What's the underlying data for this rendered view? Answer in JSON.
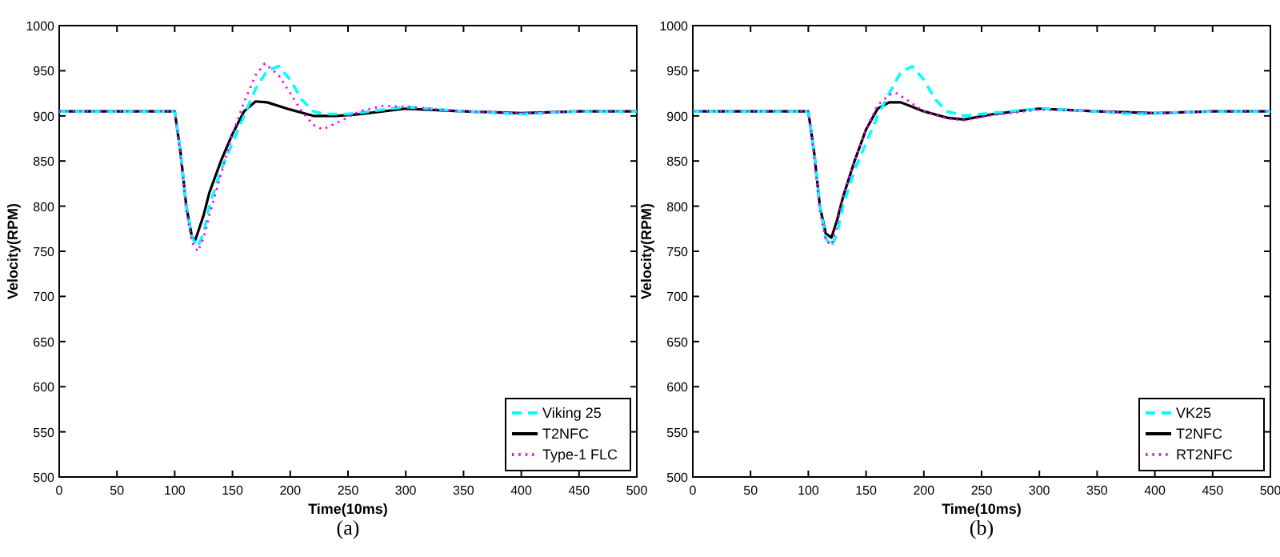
{
  "chart_data": [
    {
      "type": "line",
      "xlabel": "Time(10ms)",
      "ylabel": "Velocity(RPM)",
      "annotations": [
        "(a)"
      ],
      "xlim": [
        0,
        500
      ],
      "ylim": [
        500,
        1000
      ],
      "xticks": [
        0,
        50,
        100,
        150,
        200,
        250,
        300,
        350,
        400,
        450,
        500
      ],
      "yticks": [
        500,
        550,
        600,
        650,
        700,
        750,
        800,
        850,
        900,
        950,
        1000
      ],
      "legend": "bottom right",
      "grid": false,
      "series": [
        {
          "name": "Viking 25",
          "color": "#00ffff",
          "line_style": "dashed",
          "x": [
            0,
            100,
            105,
            110,
            115,
            120,
            125,
            130,
            140,
            150,
            160,
            170,
            180,
            190,
            200,
            210,
            220,
            230,
            250,
            300,
            350,
            400,
            450,
            500
          ],
          "values": [
            905,
            905,
            860,
            800,
            765,
            755,
            770,
            800,
            840,
            870,
            900,
            930,
            950,
            955,
            940,
            918,
            905,
            902,
            902,
            910,
            905,
            902,
            905,
            905
          ]
        },
        {
          "name": "T2NFC",
          "color": "#000000",
          "line_style": "solid",
          "x": [
            0,
            100,
            105,
            110,
            115,
            118,
            125,
            130,
            140,
            150,
            160,
            170,
            180,
            200,
            220,
            240,
            260,
            300,
            350,
            400,
            450,
            500
          ],
          "values": [
            905,
            905,
            860,
            800,
            765,
            763,
            790,
            815,
            850,
            880,
            905,
            916,
            915,
            907,
            900,
            900,
            902,
            908,
            905,
            903,
            905,
            905
          ]
        },
        {
          "name": "Type-1 FLC",
          "color": "#ff00ff",
          "line_style": "dotted",
          "x": [
            0,
            100,
            105,
            110,
            115,
            120,
            125,
            130,
            140,
            150,
            160,
            170,
            178,
            190,
            200,
            210,
            220,
            228,
            240,
            260,
            280,
            300,
            350,
            400,
            450,
            500
          ],
          "values": [
            905,
            905,
            855,
            795,
            760,
            750,
            765,
            790,
            835,
            880,
            915,
            945,
            958,
            945,
            925,
            905,
            890,
            885,
            892,
            905,
            911,
            910,
            905,
            903,
            905,
            905
          ]
        }
      ]
    },
    {
      "type": "line",
      "xlabel": "Time(10ms)",
      "ylabel": "Velocity(RPM)",
      "annotations": [
        "(b)"
      ],
      "xlim": [
        0,
        500
      ],
      "ylim": [
        500,
        1000
      ],
      "xticks": [
        0,
        50,
        100,
        150,
        200,
        250,
        300,
        350,
        400,
        450,
        500
      ],
      "yticks": [
        500,
        550,
        600,
        650,
        700,
        750,
        800,
        850,
        900,
        950,
        1000
      ],
      "legend": "bottom right",
      "grid": false,
      "series": [
        {
          "name": "VK25",
          "color": "#00ffff",
          "line_style": "dashed",
          "x": [
            0,
            100,
            105,
            110,
            115,
            120,
            125,
            130,
            140,
            150,
            160,
            170,
            180,
            190,
            200,
            210,
            220,
            235,
            250,
            300,
            350,
            380,
            450,
            500
          ],
          "values": [
            905,
            905,
            860,
            800,
            765,
            755,
            770,
            800,
            840,
            870,
            900,
            925,
            948,
            955,
            940,
            918,
            905,
            900,
            902,
            908,
            905,
            902,
            905,
            905
          ]
        },
        {
          "name": "T2NFC",
          "color": "#000000",
          "line_style": "solid",
          "x": [
            0,
            100,
            105,
            110,
            115,
            120,
            125,
            130,
            140,
            150,
            160,
            170,
            180,
            190,
            200,
            220,
            235,
            260,
            300,
            350,
            400,
            450,
            500
          ],
          "values": [
            905,
            905,
            860,
            800,
            770,
            765,
            785,
            810,
            850,
            885,
            908,
            915,
            915,
            910,
            905,
            898,
            896,
            902,
            908,
            905,
            903,
            905,
            905
          ]
        },
        {
          "name": "RT2NFC",
          "color": "#ff00ff",
          "line_style": "dotted",
          "x": [
            0,
            100,
            105,
            110,
            115,
            120,
            125,
            130,
            140,
            150,
            160,
            170,
            175,
            185,
            200,
            220,
            235,
            260,
            300,
            350,
            400,
            450,
            500
          ],
          "values": [
            905,
            905,
            855,
            795,
            762,
            757,
            780,
            810,
            850,
            885,
            912,
            923,
            926,
            918,
            905,
            897,
            895,
            901,
            907,
            905,
            903,
            905,
            905
          ]
        }
      ]
    }
  ]
}
